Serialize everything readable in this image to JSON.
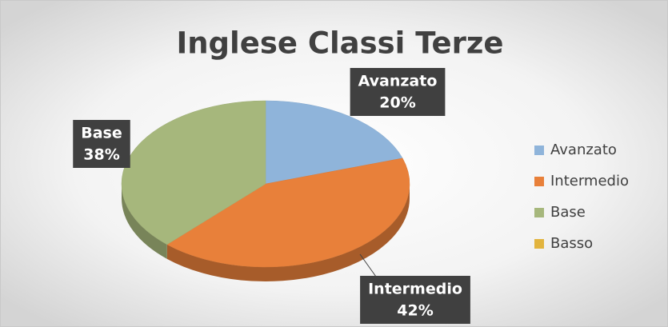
{
  "chart_data": {
    "type": "pie",
    "title": "Inglese Classi Terze",
    "categories": [
      "Avanzato",
      "Intermedio",
      "Base",
      "Basso"
    ],
    "values": [
      20,
      42,
      38,
      0
    ],
    "value_labels": [
      "20%",
      "42%",
      "38%",
      null
    ],
    "colors": [
      "#8fb4da",
      "#e8803a",
      "#a6b77c",
      "#e2b43e"
    ],
    "legend": "right"
  }
}
